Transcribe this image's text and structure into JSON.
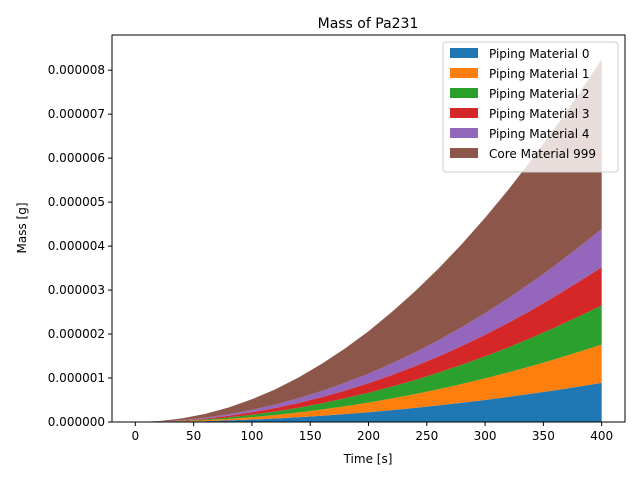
{
  "chart_data": {
    "type": "area",
    "stacked": true,
    "title": "Mass of Pa231",
    "xlabel": "Time [s]",
    "ylabel": "Mass [g]",
    "xlim": [
      -20,
      420
    ],
    "ylim": [
      0,
      8.8e-06
    ],
    "x": [
      0,
      20,
      40,
      60,
      80,
      100,
      120,
      140,
      160,
      180,
      200,
      220,
      240,
      260,
      280,
      300,
      320,
      340,
      360,
      380,
      400
    ],
    "x_ticks": [
      0,
      50,
      100,
      150,
      200,
      250,
      300,
      350,
      400
    ],
    "x_tick_labels": [
      "0",
      "50",
      "100",
      "150",
      "200",
      "250",
      "300",
      "350",
      "400"
    ],
    "y_ticks": [
      0,
      1e-06,
      2e-06,
      3e-06,
      4e-06,
      5e-06,
      6e-06,
      7e-06,
      8e-06
    ],
    "y_tick_labels": [
      "0.000000",
      "0.000001",
      "0.000002",
      "0.000003",
      "0.000004",
      "0.000005",
      "0.000006",
      "0.000007",
      "0.000008"
    ],
    "legend": "top-right",
    "series": [
      {
        "name": "Piping Material 0",
        "color": "#1f77b4",
        "values": [
          0,
          2.23e-09,
          8.9e-09,
          2e-08,
          3.57e-08,
          5.57e-08,
          8.02e-08,
          1.09e-07,
          1.43e-07,
          1.81e-07,
          2.23e-07,
          2.7e-07,
          3.21e-07,
          3.77e-07,
          4.37e-07,
          5.01e-07,
          5.7e-07,
          6.44e-07,
          7.22e-07,
          8.04e-07,
          8.9e-07
        ]
      },
      {
        "name": "Piping Material 1",
        "color": "#ff7f0e",
        "values": [
          0,
          2.18e-09,
          8.7e-09,
          1.96e-08,
          3.49e-08,
          5.45e-08,
          7.85e-08,
          1.07e-07,
          1.4e-07,
          1.77e-07,
          2.18e-07,
          2.64e-07,
          3.14e-07,
          3.68e-07,
          4.27e-07,
          4.91e-07,
          5.58e-07,
          6.3e-07,
          7.06e-07,
          7.87e-07,
          8.7e-07
        ]
      },
      {
        "name": "Piping Material 2",
        "color": "#2ca02c",
        "values": [
          0,
          2.23e-09,
          8.9e-09,
          2e-08,
          3.57e-08,
          5.57e-08,
          8.02e-08,
          1.09e-07,
          1.43e-07,
          1.81e-07,
          2.23e-07,
          2.7e-07,
          3.21e-07,
          3.77e-07,
          4.37e-07,
          5.01e-07,
          5.7e-07,
          6.44e-07,
          7.22e-07,
          8.04e-07,
          8.9e-07
        ]
      },
      {
        "name": "Piping Material 3",
        "color": "#d62728",
        "values": [
          0,
          2.18e-09,
          8.7e-09,
          1.96e-08,
          3.49e-08,
          5.45e-08,
          7.85e-08,
          1.07e-07,
          1.4e-07,
          1.77e-07,
          2.18e-07,
          2.64e-07,
          3.14e-07,
          3.68e-07,
          4.27e-07,
          4.91e-07,
          5.58e-07,
          6.3e-07,
          7.06e-07,
          7.87e-07,
          8.7e-07
        ]
      },
      {
        "name": "Piping Material 4",
        "color": "#9467bd",
        "values": [
          0,
          2.18e-09,
          8.7e-09,
          1.96e-08,
          3.49e-08,
          5.45e-08,
          7.85e-08,
          1.07e-07,
          1.4e-07,
          1.77e-07,
          2.18e-07,
          2.64e-07,
          3.14e-07,
          3.68e-07,
          4.27e-07,
          4.91e-07,
          5.58e-07,
          6.3e-07,
          7.06e-07,
          7.87e-07,
          8.7e-07
        ]
      },
      {
        "name": "Core Material 999",
        "color": "#8c564b",
        "values": [
          0,
          9.65e-09,
          3.86e-08,
          8.69e-08,
          1.54e-07,
          2.41e-07,
          3.47e-07,
          4.73e-07,
          6.18e-07,
          7.82e-07,
          9.65e-07,
          1.17e-06,
          1.39e-06,
          1.63e-06,
          1.89e-06,
          2.17e-06,
          2.47e-06,
          2.79e-06,
          3.13e-06,
          3.48e-06,
          3.86e-06
        ]
      }
    ]
  }
}
